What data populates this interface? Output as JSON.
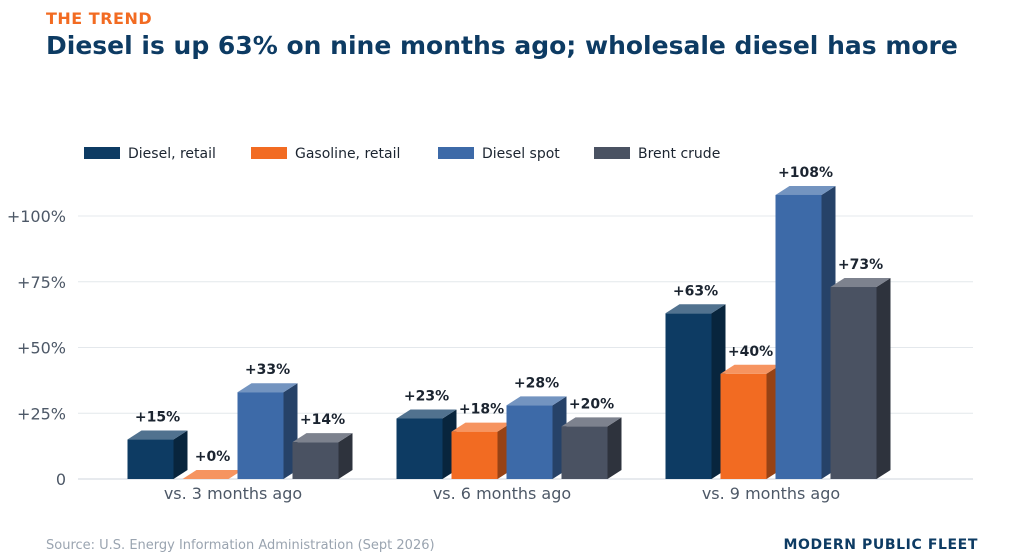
{
  "header": {
    "kicker": "THE TREND",
    "title": "Diesel is up 63% on nine months ago; wholesale diesel has more"
  },
  "footer": {
    "source": "Source: U.S. Energy Information Administration (Sept 2026)",
    "brand": "MODERN PUBLIC FLEET"
  },
  "chart_data": {
    "type": "bar",
    "title": "",
    "xlabel": "",
    "ylabel": "",
    "categories": [
      "vs. 3 months ago",
      "vs. 6 months ago",
      "vs. 9 months ago"
    ],
    "series": [
      {
        "name": "Diesel, retail",
        "values": [
          15,
          23,
          63
        ],
        "labels": [
          "+15%",
          "+23%",
          "+63%"
        ],
        "color": "#0d3b63"
      },
      {
        "name": "Gasoline, retail",
        "values": [
          0,
          18,
          40
        ],
        "labels": [
          "+0%",
          "+18%",
          "+40%"
        ],
        "color": "#f26b22"
      },
      {
        "name": "Diesel spot",
        "values": [
          33,
          28,
          108
        ],
        "labels": [
          "+33%",
          "+28%",
          "+108%"
        ],
        "color": "#3d6aa8"
      },
      {
        "name": "Brent crude",
        "values": [
          14,
          20,
          73
        ],
        "labels": [
          "+14%",
          "+20%",
          "+73%"
        ],
        "color": "#4a5262"
      }
    ],
    "ylim": [
      0,
      115
    ],
    "yticks": [
      0,
      25,
      50,
      75,
      100
    ],
    "ytick_labels": [
      "0",
      "+25%",
      "+50%",
      "+75%",
      "+100%"
    ],
    "grid": true,
    "legend_position": "top-left",
    "style": "3d-bars"
  }
}
